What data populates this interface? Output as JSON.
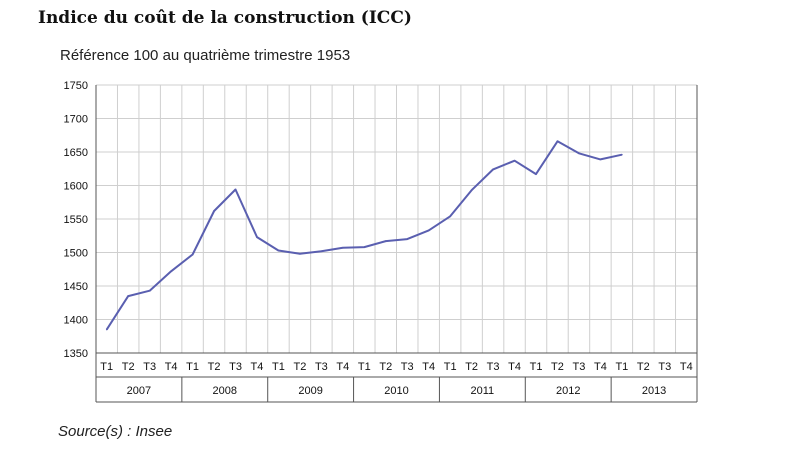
{
  "title": "Indice du coût de la construction (ICC)",
  "subtitle": "Référence 100 au quatrième trimestre 1953",
  "source": "Source(s) :  Insee",
  "colors": {
    "line": "#5a5fb0",
    "grid": "#cfcfcf",
    "axis": "#555555"
  },
  "chart_data": {
    "type": "line",
    "quarters": [
      "T1",
      "T2",
      "T3",
      "T4"
    ],
    "years": [
      "2007",
      "2008",
      "2009",
      "2010",
      "2011",
      "2012",
      "2013"
    ],
    "series": [
      {
        "values": [
          1385,
          1435,
          1443,
          1472,
          1497,
          1562,
          1594,
          1523,
          1503,
          1498,
          1502,
          1507,
          1508,
          1517,
          1520,
          1533,
          1554,
          1593,
          1624,
          1637,
          1617,
          1666,
          1648,
          1639,
          1646
        ]
      }
    ],
    "ylim": [
      1350,
      1750
    ],
    "yticks": [
      1350,
      1400,
      1450,
      1500,
      1550,
      1600,
      1650,
      1700,
      1750
    ],
    "grid": true
  }
}
